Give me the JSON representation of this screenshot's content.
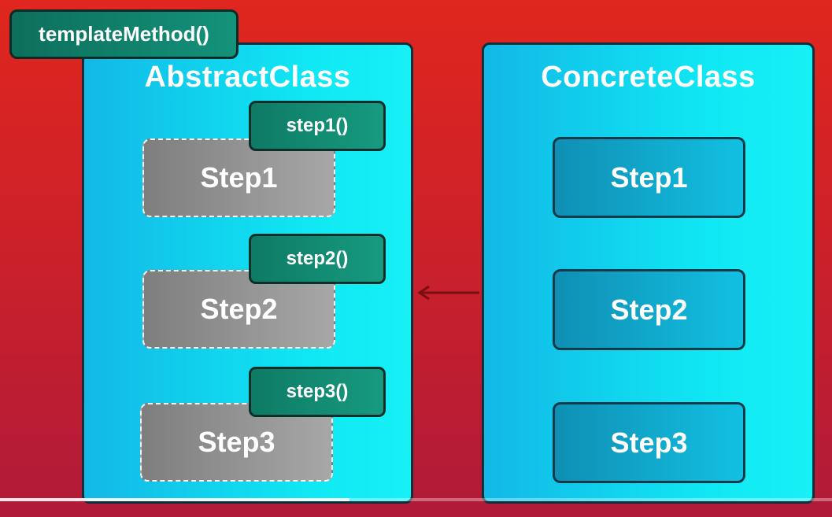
{
  "template_method": {
    "label": "templateMethod()"
  },
  "abstract_class": {
    "title": "AbstractClass",
    "steps": [
      {
        "label": "Step1",
        "method": "step1()"
      },
      {
        "label": "Step2",
        "method": "step2()"
      },
      {
        "label": "Step3",
        "method": "step3()"
      }
    ]
  },
  "concrete_class": {
    "title": "ConcreteClass",
    "steps": [
      {
        "label": "Step1"
      },
      {
        "label": "Step2"
      },
      {
        "label": "Step3"
      }
    ]
  },
  "relationship": {
    "type": "inheritance",
    "from": "ConcreteClass",
    "to": "AbstractClass"
  },
  "video_progress": 0.42
}
